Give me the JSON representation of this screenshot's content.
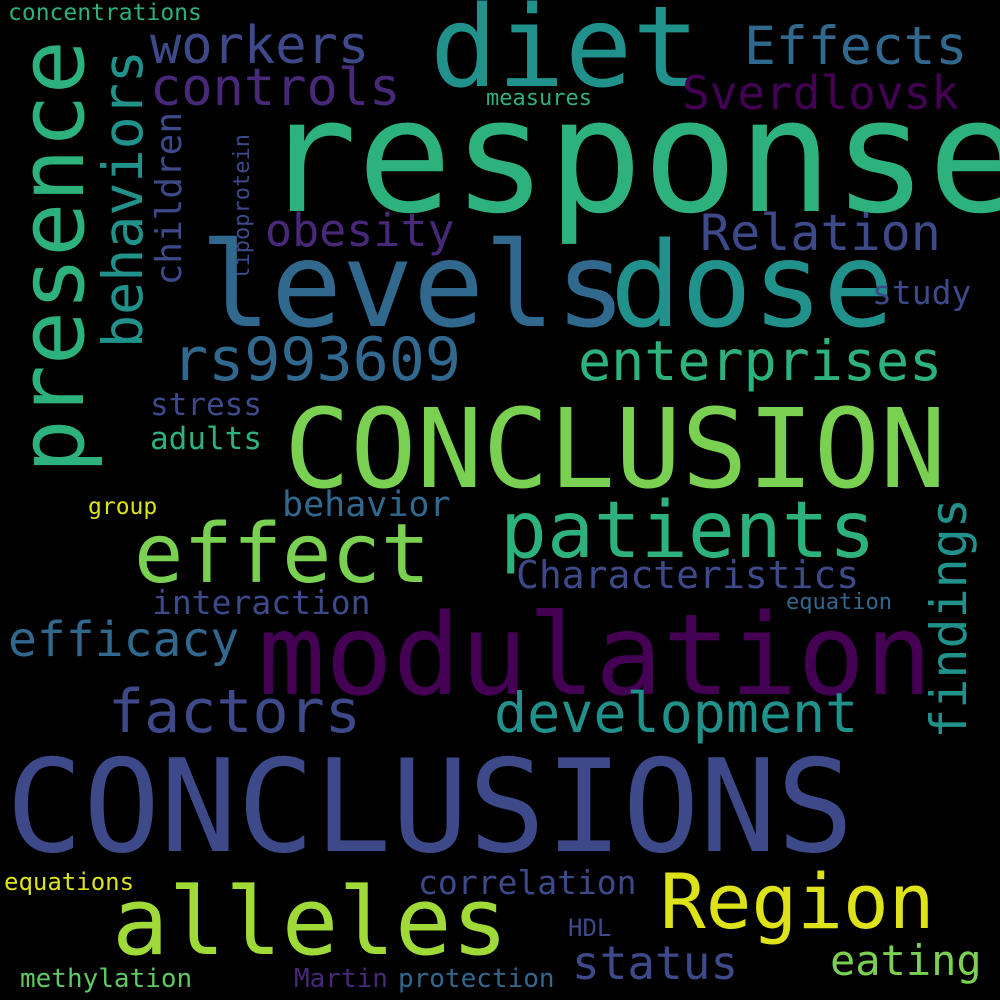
{
  "words": {
    "concentrations": "concentrations",
    "diet": "diet",
    "response": "response",
    "effects": "Effects",
    "workers": "workers",
    "controls": "controls",
    "sverdlovsk": "Sverdlovsk",
    "measures": "measures",
    "presence": "presence",
    "behaviors": "behaviors",
    "children": "children",
    "lipoprotein": "lipoprotein",
    "levels": "levels",
    "dose": "dose",
    "obesity": "obesity",
    "relation": "Relation",
    "study": "study",
    "rs993609": "rs993609",
    "enterprises": "enterprises",
    "conclusion": "CONCLUSION",
    "stress": "stress",
    "adults": "adults",
    "group": "group",
    "behavior": "behavior",
    "findings": "findings",
    "effect": "effect",
    "patients": "patients",
    "characteristics": "Characteristics",
    "interaction": "interaction",
    "equation": "equation",
    "efficacy": "efficacy",
    "modulation": "modulation",
    "factors": "factors",
    "development": "development",
    "conclusions": "CONCLUSIONS",
    "equations": "equations",
    "alleles": "alleles",
    "region": "Region",
    "correlation": "correlation",
    "hdl": "HDL",
    "status": "status",
    "eating": "eating",
    "methylation": "methylation",
    "martin": "Martin",
    "protection": "protection"
  },
  "colors": {
    "background": "#000000",
    "teal_green": "#2db27d",
    "teal": "#21918c",
    "light_green": "#7ad151",
    "yellow_green": "#a0da39",
    "yellow": "#dde318",
    "dark_purple": "#440154",
    "purple": "#482878",
    "indigo": "#3e4989",
    "slate_blue": "#31688e",
    "bright_green": "#5ec962"
  }
}
